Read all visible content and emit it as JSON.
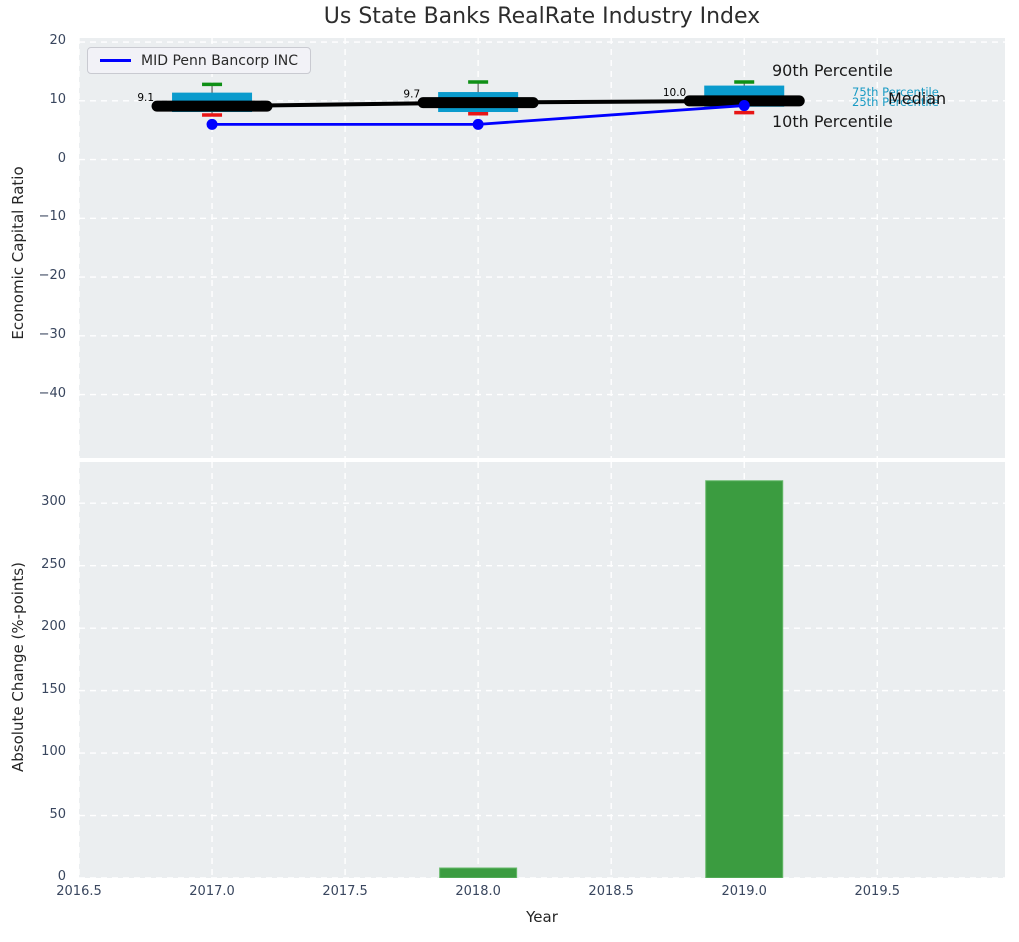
{
  "chart_data": {
    "type": "combo",
    "title": "Us State Banks RealRate Industry Index",
    "x": {
      "label": "Year",
      "lim": [
        2016.5,
        2019.98
      ],
      "ticks": [
        2016.5,
        2017.0,
        2017.5,
        2018.0,
        2018.5,
        2019.0,
        2019.5
      ]
    },
    "top_panel": {
      "type": "boxplot+line",
      "ylabel": "Economic Capital Ratio",
      "ylim": [
        -50.8,
        20.7
      ],
      "yticks": [
        20,
        10,
        0,
        -10,
        -20,
        -30,
        -40
      ],
      "grid": "white-dashed",
      "industry_boxes": [
        {
          "year": 2017,
          "p90": 12.8,
          "q3": 11.4,
          "median": 9.1,
          "q1": 8.1,
          "p10": 7.6,
          "median_label": "9.1"
        },
        {
          "year": 2018,
          "p90": 13.2,
          "q3": 11.5,
          "median": 9.7,
          "q1": 8.1,
          "p10": 7.8,
          "median_label": "9.7"
        },
        {
          "year": 2019,
          "p90": 13.2,
          "q3": 12.6,
          "median": 10.0,
          "q1": 9.0,
          "p10": 8.0,
          "median_label": "10.0"
        }
      ],
      "company_series": {
        "name": "MID Penn Bancorp INC",
        "x": [
          2017,
          2018,
          2019
        ],
        "values": [
          6.0,
          6.0,
          9.2
        ],
        "color": "#0000ff"
      },
      "legend": {
        "label": "MID Penn Bancorp INC",
        "position": "upper-left"
      },
      "annotations": {
        "p90": "90th Percentile",
        "p75": "75th Percentile",
        "p25": "25th Percentile",
        "median": "Median",
        "p10": "10th Percentile"
      }
    },
    "bottom_panel": {
      "type": "bar",
      "ylabel": "Absolute Change (%-points)",
      "ylim": [
        0,
        333
      ],
      "yticks": [
        0,
        50,
        100,
        150,
        200,
        250,
        300
      ],
      "grid": "white-dashed",
      "bars": [
        {
          "year": 2018,
          "value": 8
        },
        {
          "year": 2019,
          "value": 318
        }
      ]
    },
    "colors": {
      "axes_bg": "#ebeef0",
      "grid": "#ffffff",
      "box_fill": "#0a9bcd",
      "whisker": "#606060",
      "cap_top_green": "#0e8f15",
      "cap_bottom_red": "#e81515",
      "median_black": "#000000",
      "company_blue": "#0000ff",
      "bar_fill": "#3b9c40",
      "bar_edge": "#66b96a",
      "tick_label": "#39465e",
      "annotation_cyan": "#189ac4",
      "text": "#262626"
    }
  }
}
